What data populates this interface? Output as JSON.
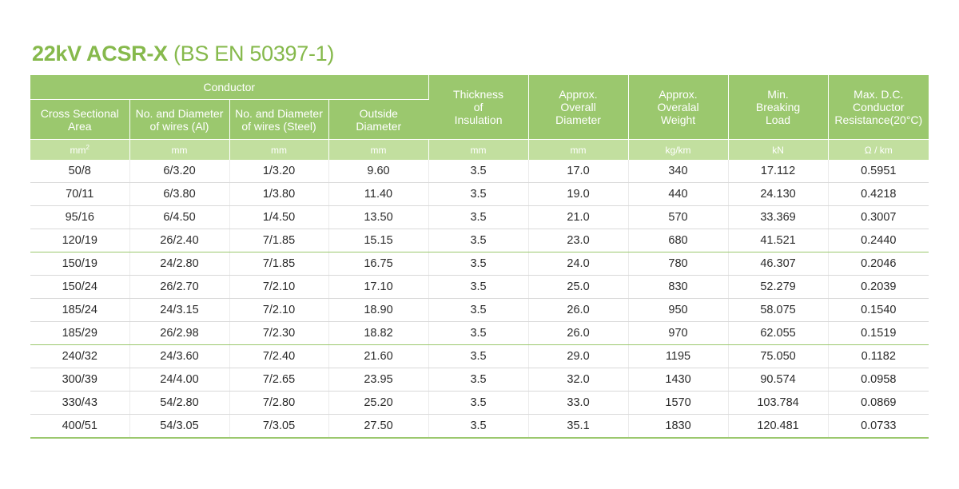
{
  "title": {
    "bold": "22kV ACSR-X",
    "normal": " (BS EN 50397-1)"
  },
  "header": {
    "conductor_group": "Conductor",
    "columns": [
      {
        "label": [
          "Cross Sectional",
          "Area"
        ],
        "unit": "mm",
        "unit_sup": "2"
      },
      {
        "label": [
          "No. and Diameter",
          "of wires (Al)"
        ],
        "unit": "mm",
        "unit_sup": ""
      },
      {
        "label": [
          "No. and Diameter",
          "of wires (Steel)"
        ],
        "unit": "mm",
        "unit_sup": ""
      },
      {
        "label": [
          "Outside",
          "Diameter"
        ],
        "unit": "mm",
        "unit_sup": ""
      },
      {
        "label": [
          "Thickness",
          "of",
          "Insulation"
        ],
        "unit": "mm",
        "unit_sup": ""
      },
      {
        "label": [
          "Approx.",
          "Overall",
          "Diameter"
        ],
        "unit": "mm",
        "unit_sup": ""
      },
      {
        "label": [
          "Approx.",
          "Overalal",
          "Weight"
        ],
        "unit": "kg/km",
        "unit_sup": ""
      },
      {
        "label": [
          "Min.",
          "Breaking",
          "Load"
        ],
        "unit": "kN",
        "unit_sup": ""
      },
      {
        "label": [
          "Max. D.C.",
          "Conductor",
          "Resistance(20°C)"
        ],
        "unit": "Ω / km",
        "unit_sup": ""
      }
    ]
  },
  "rows": [
    [
      "50/8",
      "6/3.20",
      "1/3.20",
      "9.60",
      "3.5",
      "17.0",
      "340",
      "17.112",
      "0.5951"
    ],
    [
      "70/11",
      "6/3.80",
      "1/3.80",
      "11.40",
      "3.5",
      "19.0",
      "440",
      "24.130",
      "0.4218"
    ],
    [
      "95/16",
      "6/4.50",
      "1/4.50",
      "13.50",
      "3.5",
      "21.0",
      "570",
      "33.369",
      "0.3007"
    ],
    [
      "120/19",
      "26/2.40",
      "7/1.85",
      "15.15",
      "3.5",
      "23.0",
      "680",
      "41.521",
      "0.2440"
    ],
    [
      "150/19",
      "24/2.80",
      "7/1.85",
      "16.75",
      "3.5",
      "24.0",
      "780",
      "46.307",
      "0.2046"
    ],
    [
      "150/24",
      "26/2.70",
      "7/2.10",
      "17.10",
      "3.5",
      "25.0",
      "830",
      "52.279",
      "0.2039"
    ],
    [
      "185/24",
      "24/3.15",
      "7/2.10",
      "18.90",
      "3.5",
      "26.0",
      "950",
      "58.075",
      "0.1540"
    ],
    [
      "185/29",
      "26/2.98",
      "7/2.30",
      "18.82",
      "3.5",
      "26.0",
      "970",
      "62.055",
      "0.1519"
    ],
    [
      "240/32",
      "24/3.60",
      "7/2.40",
      "21.60",
      "3.5",
      "29.0",
      "1195",
      "75.050",
      "0.1182"
    ],
    [
      "300/39",
      "24/4.00",
      "7/2.65",
      "23.95",
      "3.5",
      "32.0",
      "1430",
      "90.574",
      "0.0958"
    ],
    [
      "330/43",
      "54/2.80",
      "7/2.80",
      "25.20",
      "3.5",
      "33.0",
      "1570",
      "103.784",
      "0.0869"
    ],
    [
      "400/51",
      "54/3.05",
      "7/3.05",
      "27.50",
      "3.5",
      "35.1",
      "1830",
      "120.481",
      "0.0733"
    ]
  ],
  "colors": {
    "title": "#86b94c",
    "header_bg": "#9bc86e",
    "unit_bg": "#c2df9f",
    "separator": "#9bc86e"
  }
}
